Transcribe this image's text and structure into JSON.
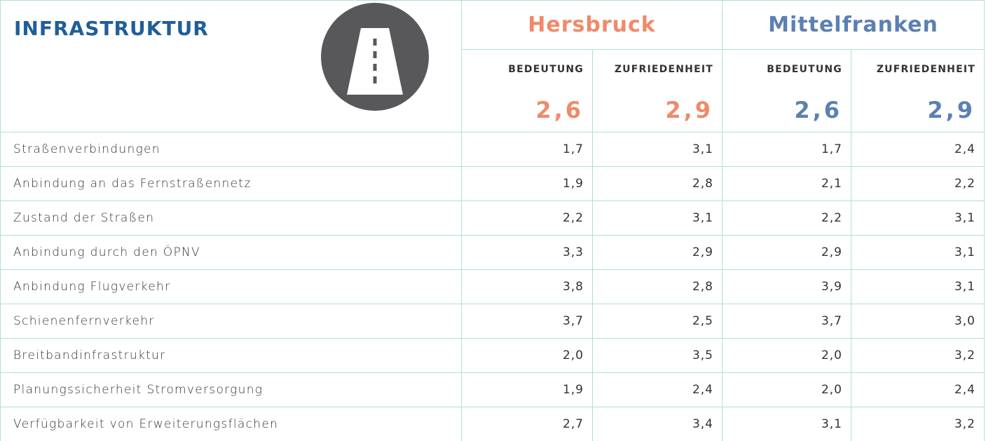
{
  "header": {
    "title": "INFRASTRUKTUR",
    "groups": [
      {
        "name": "Hersbruck",
        "color": "#ef8a6a"
      },
      {
        "name": "Mittelfranken",
        "color": "#5b80b2"
      }
    ],
    "subheaders": [
      "BEDEUTUNG",
      "ZUFRIEDENHEIT",
      "BEDEUTUNG",
      "ZUFRIEDENHEIT"
    ],
    "totals": [
      "2,6",
      "2,9",
      "2,6",
      "2,9"
    ]
  },
  "table": {
    "rows": [
      [
        "Straßenverbindungen",
        "1,7",
        "3,1",
        "1,7",
        "2,4"
      ],
      [
        "Anbindung an das Fernstraßennetz",
        "1,9",
        "2,8",
        "2,1",
        "2,2"
      ],
      [
        "Zustand der Straßen",
        "2,2",
        "3,1",
        "2,2",
        "3,1"
      ],
      [
        "Anbindung durch den ÖPNV",
        "3,3",
        "2,9",
        "2,9",
        "3,1"
      ],
      [
        "Anbindung Flugverkehr",
        "3,8",
        "2,8",
        "3,9",
        "3,1"
      ],
      [
        "Schienenfernverkehr",
        "3,7",
        "2,5",
        "3,7",
        "3,0"
      ],
      [
        "Breitbandinfrastruktur",
        "2,0",
        "3,5",
        "2,0",
        "3,2"
      ],
      [
        "Planungssicherheit Stromversorgung",
        "1,9",
        "2,4",
        "2,0",
        "2,4"
      ],
      [
        "Verfügbarkeit von Erweiterungsflächen",
        "2,7",
        "3,4",
        "3,1",
        "3,2"
      ]
    ]
  }
}
